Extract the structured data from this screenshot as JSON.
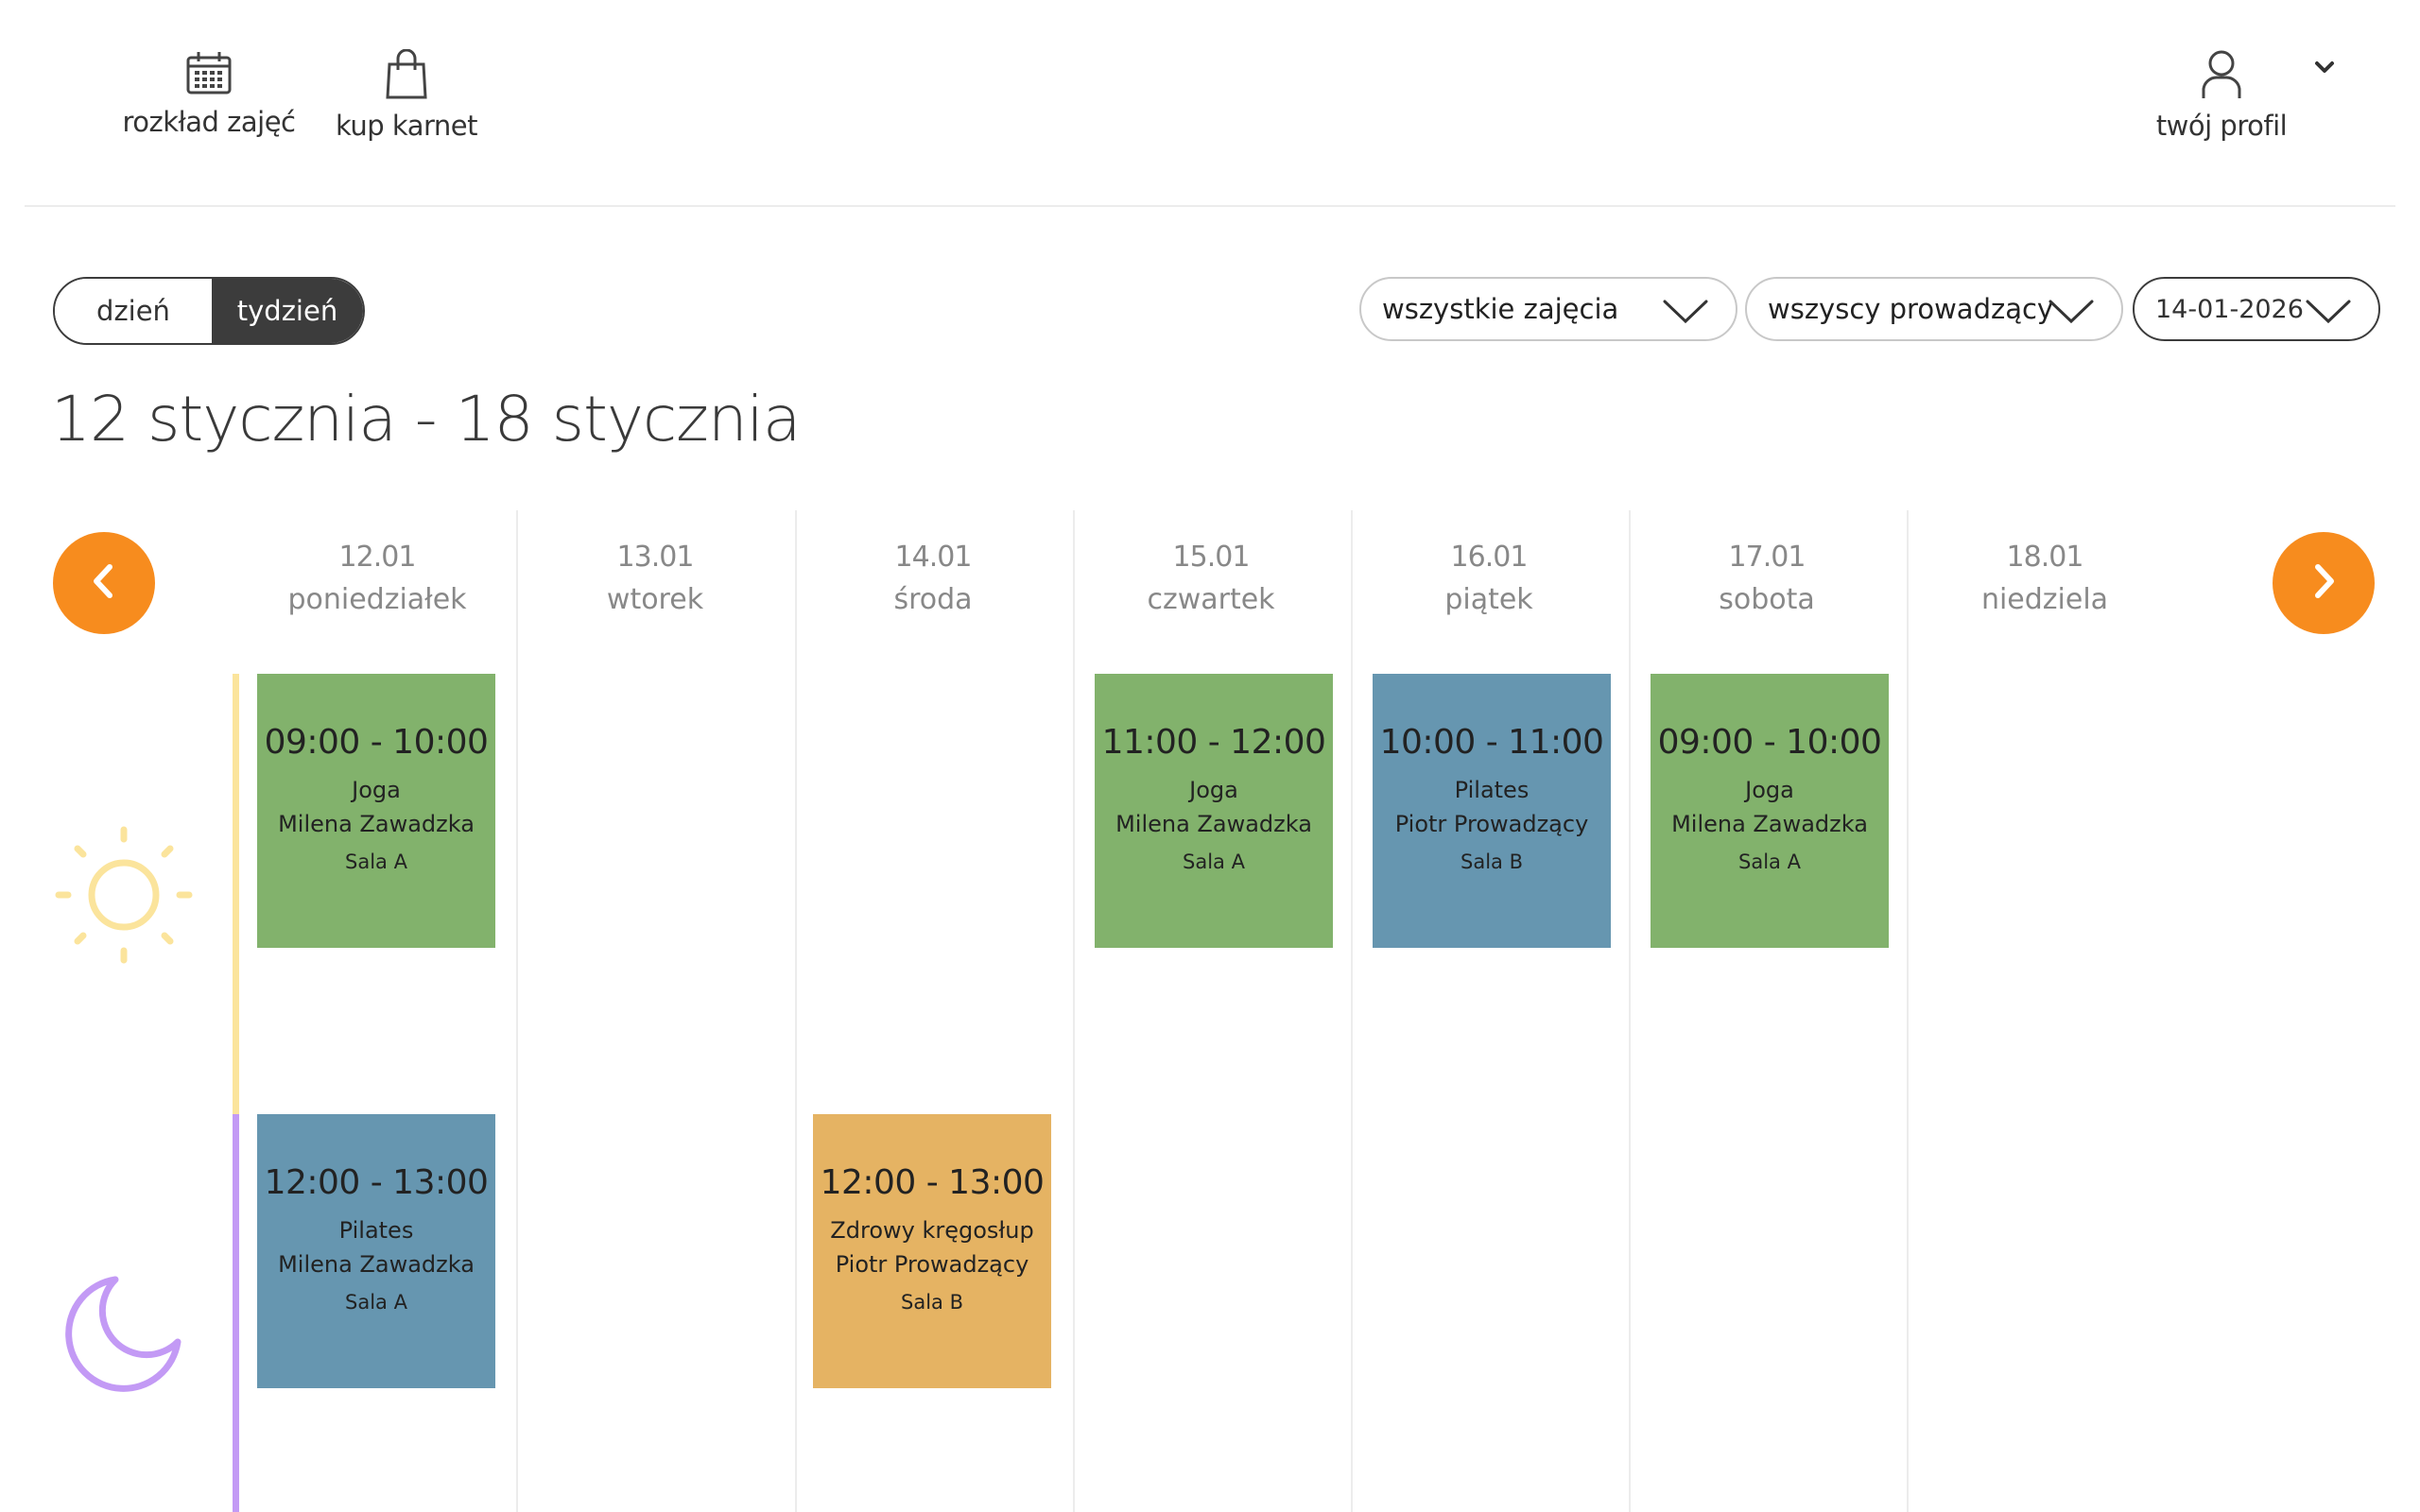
{
  "header": {
    "nav": [
      {
        "label": "rozkład zajęć",
        "icon": "calendar-icon"
      },
      {
        "label": "kup karnet",
        "icon": "shopping-bag-icon"
      }
    ],
    "profile": {
      "label": "twój profil",
      "icon": "user-icon"
    }
  },
  "toolbar": {
    "view_options": [
      "dzień",
      "tydzień"
    ],
    "selected_view": "tydzień",
    "filters": {
      "classes": "wszystkie zajęcia",
      "trainers": "wszyscy prowadzący",
      "date": "14-01-2026"
    }
  },
  "week_title": "12 stycznia - 18 stycznia",
  "days": [
    {
      "date": "12.01",
      "name": "poniedziałek"
    },
    {
      "date": "13.01",
      "name": "wtorek"
    },
    {
      "date": "14.01",
      "name": "środa"
    },
    {
      "date": "15.01",
      "name": "czwartek"
    },
    {
      "date": "16.01",
      "name": "piątek"
    },
    {
      "date": "17.01",
      "name": "sobota"
    },
    {
      "date": "18.01",
      "name": "niedziela"
    }
  ],
  "periods": [
    {
      "name": "morning",
      "icon": "sun-icon",
      "color": "#fbe49c"
    },
    {
      "name": "afternoon",
      "icon": "moon-icon",
      "color": "#c39af5"
    }
  ],
  "events": [
    {
      "day": "12.01",
      "time": "09:00 - 10:00",
      "class": "Joga",
      "trainer": "Milena Zawadzka",
      "room": "Sala A",
      "color": "#82b26c"
    },
    {
      "day": "15.01",
      "time": "11:00 - 12:00",
      "class": "Joga",
      "trainer": "Milena Zawadzka",
      "room": "Sala A",
      "color": "#82b26c"
    },
    {
      "day": "16.01",
      "time": "10:00 - 11:00",
      "class": "Pilates",
      "trainer": "Piotr Prowadzący",
      "room": "Sala B",
      "color": "#6696b0"
    },
    {
      "day": "17.01",
      "time": "09:00 - 10:00",
      "class": "Joga",
      "trainer": "Milena Zawadzka",
      "room": "Sala A",
      "color": "#82b26c"
    },
    {
      "day": "12.01",
      "time": "12:00 - 13:00",
      "class": "Pilates",
      "trainer": "Milena Zawadzka",
      "room": "Sala A",
      "color": "#6696b0"
    },
    {
      "day": "14.01",
      "time": "12:00 - 13:00",
      "class": "Zdrowy kręgosłup",
      "trainer": "Piotr Prowadzący",
      "room": "Sala B",
      "color": "#e5b363"
    }
  ],
  "colors": {
    "accent": "#f78c1e",
    "dark": "#3c3c3c"
  }
}
